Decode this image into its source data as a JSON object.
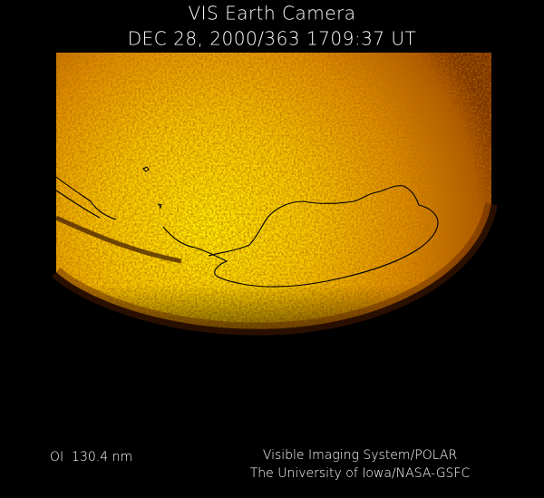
{
  "header": {
    "title": "VIS Earth Camera",
    "timestamp": "DEC 28, 2000/363 1709:37 UT"
  },
  "footer": {
    "wavelength": "OI  130.4 nm",
    "credit_line1": "Visible Imaging System/POLAR",
    "credit_line2": "The University of Iowa/NASA-GSFC"
  }
}
